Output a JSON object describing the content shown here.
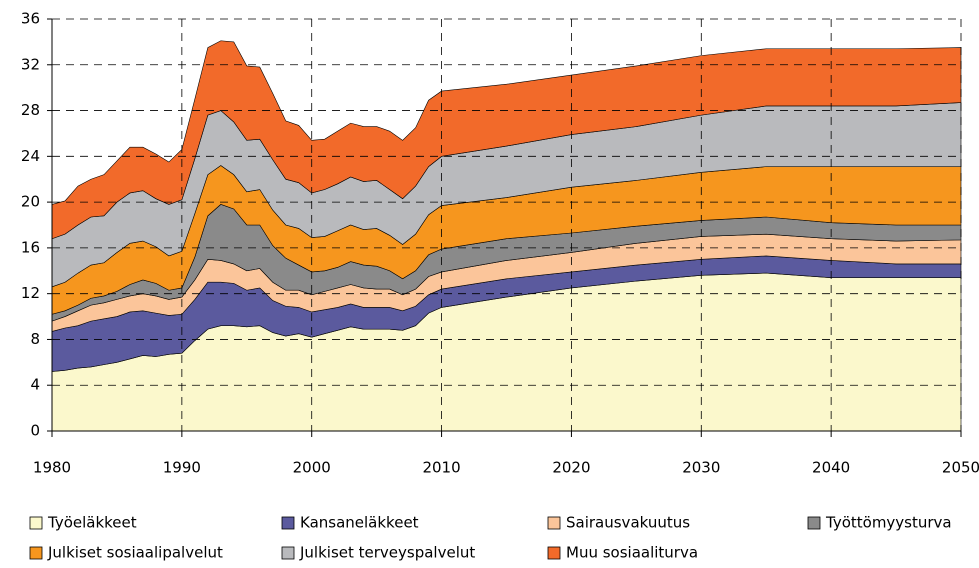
{
  "chart_data": {
    "type": "stacked_area",
    "x": [
      1980,
      1981,
      1982,
      1983,
      1984,
      1985,
      1986,
      1987,
      1988,
      1989,
      1990,
      1991,
      1992,
      1993,
      1994,
      1995,
      1996,
      1997,
      1998,
      1999,
      2000,
      2001,
      2002,
      2003,
      2004,
      2005,
      2006,
      2007,
      2008,
      2009,
      2010,
      2015,
      2020,
      2025,
      2030,
      2035,
      2040,
      2045,
      2050
    ],
    "xlim": [
      1980,
      2050
    ],
    "xticks": [
      1980,
      1990,
      2000,
      2010,
      2020,
      2030,
      2040,
      2050
    ],
    "ylim": [
      0,
      36
    ],
    "yticks": [
      0,
      4,
      8,
      12,
      16,
      20,
      24,
      28,
      32,
      36
    ],
    "grid": true,
    "series": [
      {
        "name": "Työeläkkeet",
        "color": "#fbf8cc",
        "values": [
          5.2,
          5.3,
          5.5,
          5.6,
          5.8,
          6.0,
          6.3,
          6.6,
          6.5,
          6.7,
          6.8,
          7.9,
          8.9,
          9.2,
          9.2,
          9.1,
          9.2,
          8.6,
          8.3,
          8.5,
          8.2,
          8.5,
          8.8,
          9.1,
          8.9,
          8.9,
          8.9,
          8.8,
          9.2,
          10.3,
          10.8,
          11.7,
          12.5,
          13.1,
          13.6,
          13.8,
          13.4,
          13.4,
          13.4
        ]
      },
      {
        "name": "Kansaneläkkeet",
        "color": "#5b5a9e",
        "values": [
          3.5,
          3.7,
          3.7,
          4.0,
          4.0,
          4.0,
          4.1,
          3.9,
          3.8,
          3.4,
          3.4,
          3.6,
          4.1,
          3.8,
          3.7,
          3.2,
          3.3,
          2.8,
          2.6,
          2.3,
          2.2,
          2.1,
          2.0,
          2.0,
          1.9,
          1.9,
          1.9,
          1.7,
          1.7,
          1.6,
          1.6,
          1.6,
          1.4,
          1.4,
          1.4,
          1.5,
          1.5,
          1.2,
          1.2
        ]
      },
      {
        "name": "Sairausvakuutus",
        "color": "#fbc59a",
        "values": [
          0.9,
          1.0,
          1.3,
          1.4,
          1.4,
          1.5,
          1.4,
          1.5,
          1.5,
          1.4,
          1.5,
          1.7,
          2.0,
          1.9,
          1.7,
          1.7,
          1.7,
          1.6,
          1.4,
          1.5,
          1.5,
          1.6,
          1.7,
          1.7,
          1.7,
          1.6,
          1.6,
          1.4,
          1.5,
          1.6,
          1.5,
          1.6,
          1.7,
          1.9,
          2.0,
          1.9,
          1.9,
          2.0,
          2.1
        ]
      },
      {
        "name": "Työttömyysturva",
        "color": "#8a8a8a",
        "values": [
          0.6,
          0.5,
          0.5,
          0.6,
          0.6,
          0.7,
          1.0,
          1.2,
          1.1,
          0.8,
          0.8,
          2.0,
          3.8,
          4.9,
          4.8,
          4.0,
          3.8,
          3.2,
          2.8,
          2.2,
          2.0,
          1.8,
          1.8,
          2.0,
          2.0,
          2.0,
          1.6,
          1.4,
          1.6,
          1.9,
          2.0,
          1.9,
          1.7,
          1.5,
          1.4,
          1.5,
          1.4,
          1.4,
          1.3
        ]
      },
      {
        "name": "Julkiset sosiaalipalvelut",
        "color": "#f6961e",
        "values": [
          2.4,
          2.5,
          2.8,
          2.9,
          2.9,
          3.4,
          3.6,
          3.4,
          3.2,
          3.0,
          3.2,
          3.8,
          3.6,
          3.4,
          3.0,
          2.9,
          3.1,
          3.1,
          2.9,
          3.2,
          3.0,
          3.0,
          3.2,
          3.2,
          3.1,
          3.3,
          3.1,
          3.0,
          3.2,
          3.5,
          3.8,
          3.6,
          4.0,
          4.0,
          4.2,
          4.4,
          4.9,
          5.1,
          5.1
        ]
      },
      {
        "name": "Julkiset terveyspalvelut",
        "color": "#b9babd",
        "values": [
          4.2,
          4.2,
          4.2,
          4.2,
          4.1,
          4.4,
          4.4,
          4.4,
          4.2,
          4.5,
          4.5,
          4.8,
          5.2,
          4.8,
          4.6,
          4.5,
          4.4,
          4.4,
          4.0,
          4.0,
          3.9,
          4.1,
          4.1,
          4.2,
          4.2,
          4.2,
          4.0,
          4.0,
          4.2,
          4.2,
          4.3,
          4.5,
          4.6,
          4.7,
          5.0,
          5.3,
          5.3,
          5.3,
          5.6
        ]
      },
      {
        "name": "Muu sosiaaliturva",
        "color": "#f26a2a",
        "values": [
          3.0,
          2.9,
          3.4,
          3.3,
          3.6,
          3.6,
          4.0,
          3.8,
          3.9,
          3.7,
          4.4,
          5.2,
          5.9,
          6.1,
          7.0,
          6.5,
          6.3,
          5.8,
          5.1,
          5.0,
          4.6,
          4.4,
          4.6,
          4.7,
          4.8,
          4.7,
          5.1,
          5.1,
          5.1,
          5.8,
          5.7,
          5.4,
          5.2,
          5.3,
          5.2,
          5.0,
          5.0,
          5.0,
          4.8
        ]
      }
    ]
  }
}
